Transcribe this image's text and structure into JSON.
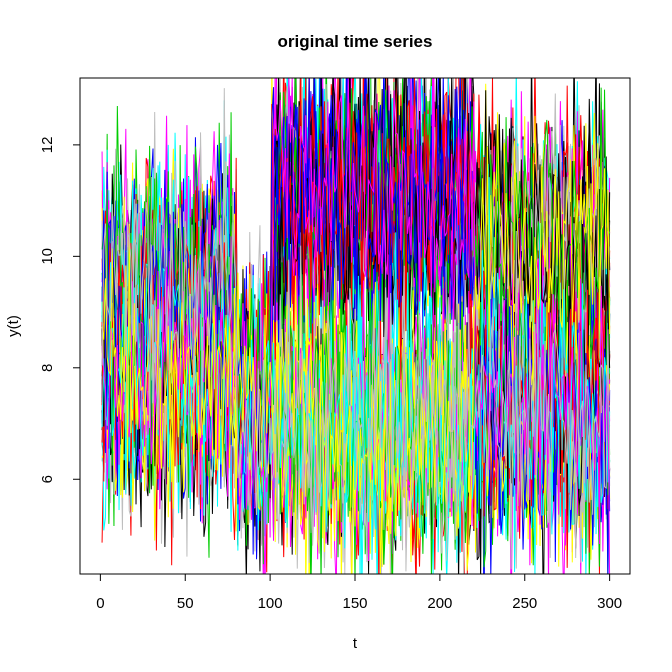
{
  "chart_data": {
    "type": "line",
    "title": "original time series",
    "xlabel": "t",
    "ylabel": "y(t)",
    "xlim": [
      -12,
      312
    ],
    "ylim": [
      4.3,
      13.2
    ],
    "x_ticks": [
      0,
      50,
      100,
      150,
      200,
      250,
      300
    ],
    "y_ticks": [
      6,
      8,
      10,
      12
    ],
    "grid": false,
    "legend": "none",
    "x_start": 1,
    "x_end": 300,
    "series_count": 8,
    "regimes": [
      {
        "t_start": 1,
        "t_end": 80,
        "levels": [
          7.9,
          9.3
        ]
      },
      {
        "t_start": 81,
        "t_end": 100,
        "levels": [
          7.2
        ]
      },
      {
        "t_start": 101,
        "t_end": 220,
        "levels": [
          7.0,
          11.0
        ]
      },
      {
        "t_start": 221,
        "t_end": 300,
        "levels": [
          7.2,
          10.2
        ]
      }
    ],
    "noise_sd": 1.5,
    "series_colors": [
      "#000000",
      "#FF0000",
      "#00CD00",
      "#0000FF",
      "#00FFFF",
      "#FF00FF",
      "#FFFF00",
      "#BEBEBE"
    ]
  }
}
